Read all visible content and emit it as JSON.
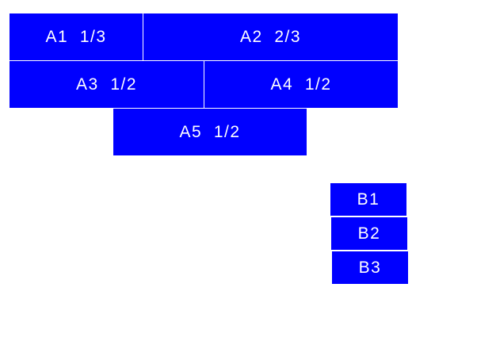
{
  "colors": {
    "box": "#0000ff",
    "text": "#ffffff",
    "background": "#ffffff"
  },
  "group_a": [
    {
      "label": "A1  1/3"
    },
    {
      "label": "A2  2/3"
    },
    {
      "label": "A3  1/2"
    },
    {
      "label": "A4  1/2"
    },
    {
      "label": "A5  1/2"
    }
  ],
  "group_b": [
    {
      "label": "B1"
    },
    {
      "label": "B2"
    },
    {
      "label": "B3"
    }
  ]
}
